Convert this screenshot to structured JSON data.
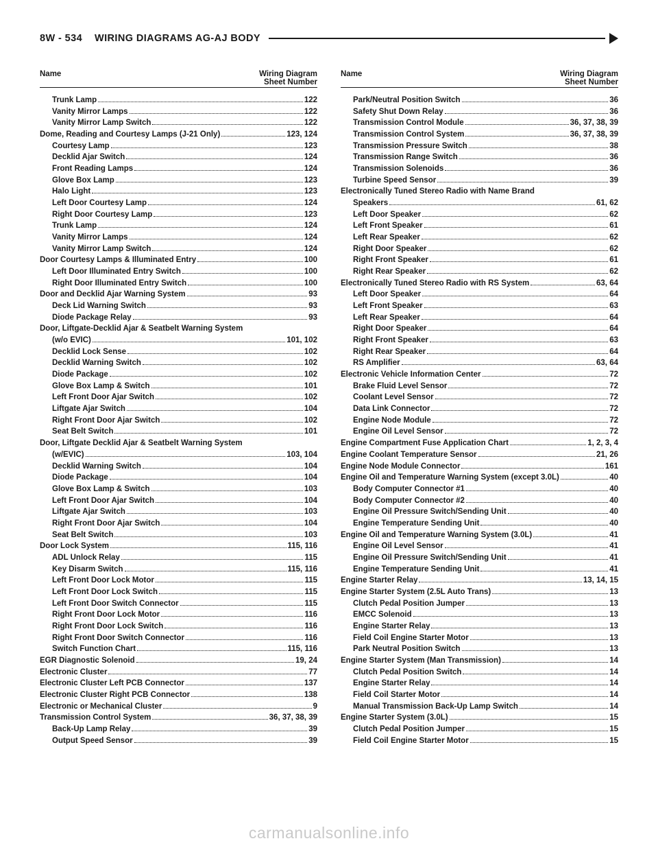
{
  "header": {
    "page_num": "8W - 534",
    "title": "WIRING DIAGRAMS AG-AJ BODY"
  },
  "column_header": {
    "left": "Name",
    "right_top": "Wiring Diagram",
    "right_bottom": "Sheet Number"
  },
  "watermark": "carmanualsonline.info",
  "left": [
    {
      "sub": true,
      "label": "Trunk Lamp",
      "num": "122"
    },
    {
      "sub": true,
      "label": "Vanity Mirror Lamps",
      "num": "122"
    },
    {
      "sub": true,
      "label": "Vanity Mirror Lamp Switch",
      "num": "122"
    },
    {
      "sub": false,
      "label": "Dome, Reading and Courtesy Lamps (J-21 Only)",
      "num": "123, 124"
    },
    {
      "sub": true,
      "label": "Courtesy Lamp",
      "num": "123"
    },
    {
      "sub": true,
      "label": "Decklid Ajar Switch",
      "num": "124"
    },
    {
      "sub": true,
      "label": "Front Reading Lamps",
      "num": "124"
    },
    {
      "sub": true,
      "label": "Glove Box Lamp",
      "num": "123"
    },
    {
      "sub": true,
      "label": "Halo Light",
      "num": "123"
    },
    {
      "sub": true,
      "label": "Left Door Courtesy Lamp",
      "num": "124"
    },
    {
      "sub": true,
      "label": "Right Door Courtesy Lamp",
      "num": "123"
    },
    {
      "sub": true,
      "label": "Trunk Lamp",
      "num": "124"
    },
    {
      "sub": true,
      "label": "Vanity Mirror Lamps",
      "num": "124"
    },
    {
      "sub": true,
      "label": "Vanity Mirror Lamp Switch",
      "num": "124"
    },
    {
      "sub": false,
      "label": "Door Courtesy Lamps & Illuminated Entry",
      "num": "100"
    },
    {
      "sub": true,
      "label": "Left Door Illuminated Entry Switch",
      "num": "100"
    },
    {
      "sub": true,
      "label": "Right Door Illuminated Entry Switch",
      "num": "100"
    },
    {
      "sub": false,
      "label": "Door and Decklid Ajar Warning System",
      "num": "93"
    },
    {
      "sub": true,
      "label": "Deck Lid Warning Switch",
      "num": "93"
    },
    {
      "sub": true,
      "label": "Diode Package Relay",
      "num": "93"
    },
    {
      "sub": false,
      "label": "Door, Liftgate-Decklid Ajar & Seatbelt Warning System",
      "num": ""
    },
    {
      "sub": true,
      "label": "(w/o EVIC)",
      "num": "101, 102"
    },
    {
      "sub": true,
      "label": "Decklid Lock Sense",
      "num": "102"
    },
    {
      "sub": true,
      "label": "Decklid Warning Switch",
      "num": "102"
    },
    {
      "sub": true,
      "label": "Diode Package",
      "num": "102"
    },
    {
      "sub": true,
      "label": "Glove Box Lamp & Switch",
      "num": "101"
    },
    {
      "sub": true,
      "label": "Left Front Door Ajar Switch",
      "num": "102"
    },
    {
      "sub": true,
      "label": "Liftgate Ajar Switch",
      "num": "104"
    },
    {
      "sub": true,
      "label": "Right Front Door Ajar Switch",
      "num": "102"
    },
    {
      "sub": true,
      "label": "Seat Belt Switch",
      "num": "101"
    },
    {
      "sub": false,
      "label": "Door, Liftgate Decklid Ajar & Seatbelt Warning System",
      "num": ""
    },
    {
      "sub": true,
      "label": "(w/EVIC)",
      "num": "103, 104"
    },
    {
      "sub": true,
      "label": "Decklid Warning Switch",
      "num": "104"
    },
    {
      "sub": true,
      "label": "Diode Package",
      "num": "104"
    },
    {
      "sub": true,
      "label": "Glove Box Lamp & Switch",
      "num": "103"
    },
    {
      "sub": true,
      "label": "Left Front Door Ajar Switch",
      "num": "104"
    },
    {
      "sub": true,
      "label": "Liftgate Ajar Switch",
      "num": "103"
    },
    {
      "sub": true,
      "label": "Right Front Door Ajar Switch",
      "num": "104"
    },
    {
      "sub": true,
      "label": "Seat Belt Switch",
      "num": "103"
    },
    {
      "sub": false,
      "label": "Door Lock System",
      "num": "115, 116"
    },
    {
      "sub": true,
      "label": "ADL Unlock Relay",
      "num": "115"
    },
    {
      "sub": true,
      "label": "Key Disarm Switch",
      "num": "115, 116"
    },
    {
      "sub": true,
      "label": "Left Front Door Lock Motor",
      "num": "115"
    },
    {
      "sub": true,
      "label": "Left Front Door Lock Switch",
      "num": "115"
    },
    {
      "sub": true,
      "label": "Left Front Door Switch Connector",
      "num": "115"
    },
    {
      "sub": true,
      "label": "Right Front Door Lock Motor",
      "num": "116"
    },
    {
      "sub": true,
      "label": "Right Front Door Lock Switch",
      "num": "116"
    },
    {
      "sub": true,
      "label": "Right Front Door Switch Connector",
      "num": "116"
    },
    {
      "sub": true,
      "label": "Switch Function Chart",
      "num": "115, 116"
    },
    {
      "sub": false,
      "label": "EGR Diagnostic Solenoid",
      "num": "19, 24"
    },
    {
      "sub": false,
      "label": "Electronic Cluster",
      "num": "77"
    },
    {
      "sub": false,
      "label": "Electronic Cluster Left PCB Connector",
      "num": "137"
    },
    {
      "sub": false,
      "label": "Electronic Cluster Right PCB Connector",
      "num": "138"
    },
    {
      "sub": false,
      "label": "Electronic or Mechanical Cluster",
      "num": "9"
    },
    {
      "sub": false,
      "label": "Transmission Control System",
      "num": "36, 37, 38, 39"
    },
    {
      "sub": true,
      "label": "Back-Up Lamp Relay",
      "num": "39"
    },
    {
      "sub": true,
      "label": "Output Speed Sensor",
      "num": "39"
    }
  ],
  "right": [
    {
      "sub": true,
      "label": "Park/Neutral Position Switch",
      "num": "36"
    },
    {
      "sub": true,
      "label": "Safety Shut Down Relay",
      "num": "36"
    },
    {
      "sub": true,
      "label": "Transmission Control Module",
      "num": "36, 37, 38, 39"
    },
    {
      "sub": true,
      "label": "Transmission Control System",
      "num": "36, 37, 38, 39"
    },
    {
      "sub": true,
      "label": "Transmission Pressure Switch",
      "num": "38"
    },
    {
      "sub": true,
      "label": "Transmission Range Switch",
      "num": "36"
    },
    {
      "sub": true,
      "label": "Transmission Solenoids",
      "num": "36"
    },
    {
      "sub": true,
      "label": "Turbine Speed Sensor",
      "num": "39"
    },
    {
      "sub": false,
      "label": "Electronically Tuned Stereo Radio with Name Brand",
      "num": ""
    },
    {
      "sub": true,
      "label": "Speakers",
      "num": "61, 62"
    },
    {
      "sub": true,
      "label": "Left Door Speaker",
      "num": "62"
    },
    {
      "sub": true,
      "label": "Left Front Speaker",
      "num": "61"
    },
    {
      "sub": true,
      "label": "Left Rear Speaker",
      "num": "62"
    },
    {
      "sub": true,
      "label": "Right Door Speaker",
      "num": "62"
    },
    {
      "sub": true,
      "label": "Right Front Speaker",
      "num": "61"
    },
    {
      "sub": true,
      "label": "Right Rear Speaker",
      "num": "62"
    },
    {
      "sub": false,
      "label": "Electronically Tuned Stereo Radio with RS System",
      "num": "63, 64"
    },
    {
      "sub": true,
      "label": "Left Door Speaker",
      "num": "64"
    },
    {
      "sub": true,
      "label": "Left Front Speaker",
      "num": "63"
    },
    {
      "sub": true,
      "label": "Left Rear Speaker",
      "num": "64"
    },
    {
      "sub": true,
      "label": "Right Door Speaker",
      "num": "64"
    },
    {
      "sub": true,
      "label": "Right Front Speaker",
      "num": "63"
    },
    {
      "sub": true,
      "label": "Right Rear Speaker",
      "num": "64"
    },
    {
      "sub": true,
      "label": "RS Amplifier",
      "num": "63, 64"
    },
    {
      "sub": false,
      "label": "Electronic Vehicle Information Center",
      "num": "72"
    },
    {
      "sub": true,
      "label": "Brake Fluid Level Sensor",
      "num": "72"
    },
    {
      "sub": true,
      "label": "Coolant Level Sensor",
      "num": "72"
    },
    {
      "sub": true,
      "label": "Data Link Connector",
      "num": "72"
    },
    {
      "sub": true,
      "label": "Engine Node Module",
      "num": "72"
    },
    {
      "sub": true,
      "label": "Engine Oil Level Sensor",
      "num": "72"
    },
    {
      "sub": false,
      "label": "Engine Compartment Fuse Application Chart",
      "num": "1, 2, 3, 4"
    },
    {
      "sub": false,
      "label": "Engine Coolant Temperature Sensor",
      "num": "21, 26"
    },
    {
      "sub": false,
      "label": "Engine Node Module Connector",
      "num": "161"
    },
    {
      "sub": false,
      "label": "Engine Oil and Temperature Warning System (except 3.0L)",
      "num": "40"
    },
    {
      "sub": true,
      "label": "Body Computer Connector #1",
      "num": "40"
    },
    {
      "sub": true,
      "label": "Body Computer Connector #2",
      "num": "40"
    },
    {
      "sub": true,
      "label": "Engine Oil Pressure Switch/Sending Unit",
      "num": "40"
    },
    {
      "sub": true,
      "label": "Engine Temperature Sending Unit",
      "num": "40"
    },
    {
      "sub": false,
      "label": "Engine Oil and Temperature Warning System (3.0L)",
      "num": "41"
    },
    {
      "sub": true,
      "label": "Engine Oil Level Sensor",
      "num": "41"
    },
    {
      "sub": true,
      "label": "Engine Oil Pressure Switch/Sending Unit",
      "num": "41"
    },
    {
      "sub": true,
      "label": "Engine Temperature Sending Unit",
      "num": "41"
    },
    {
      "sub": false,
      "label": "Engine Starter Relay",
      "num": "13, 14, 15"
    },
    {
      "sub": false,
      "label": "Engine Starter System (2.5L Auto Trans)",
      "num": "13"
    },
    {
      "sub": true,
      "label": "Clutch Pedal Position Jumper",
      "num": "13"
    },
    {
      "sub": true,
      "label": "EMCC Solenoid",
      "num": "13"
    },
    {
      "sub": true,
      "label": "Engine Starter Relay",
      "num": "13"
    },
    {
      "sub": true,
      "label": "Field Coil Engine Starter Motor",
      "num": "13"
    },
    {
      "sub": true,
      "label": "Park Neutral Position Switch",
      "num": "13"
    },
    {
      "sub": false,
      "label": "Engine Starter System (Man Transmission)",
      "num": "14"
    },
    {
      "sub": true,
      "label": "Clutch Pedal Position Switch",
      "num": "14"
    },
    {
      "sub": true,
      "label": "Engine Starter Relay",
      "num": "14"
    },
    {
      "sub": true,
      "label": "Field Coil Starter Motor",
      "num": "14"
    },
    {
      "sub": true,
      "label": "Manual Transmission Back-Up Lamp Switch",
      "num": "14"
    },
    {
      "sub": false,
      "label": "Engine Starter System (3.0L)",
      "num": "15"
    },
    {
      "sub": true,
      "label": "Clutch Pedal Position Jumper",
      "num": "15"
    },
    {
      "sub": true,
      "label": "Field Coil Engine Starter Motor",
      "num": "15"
    }
  ]
}
